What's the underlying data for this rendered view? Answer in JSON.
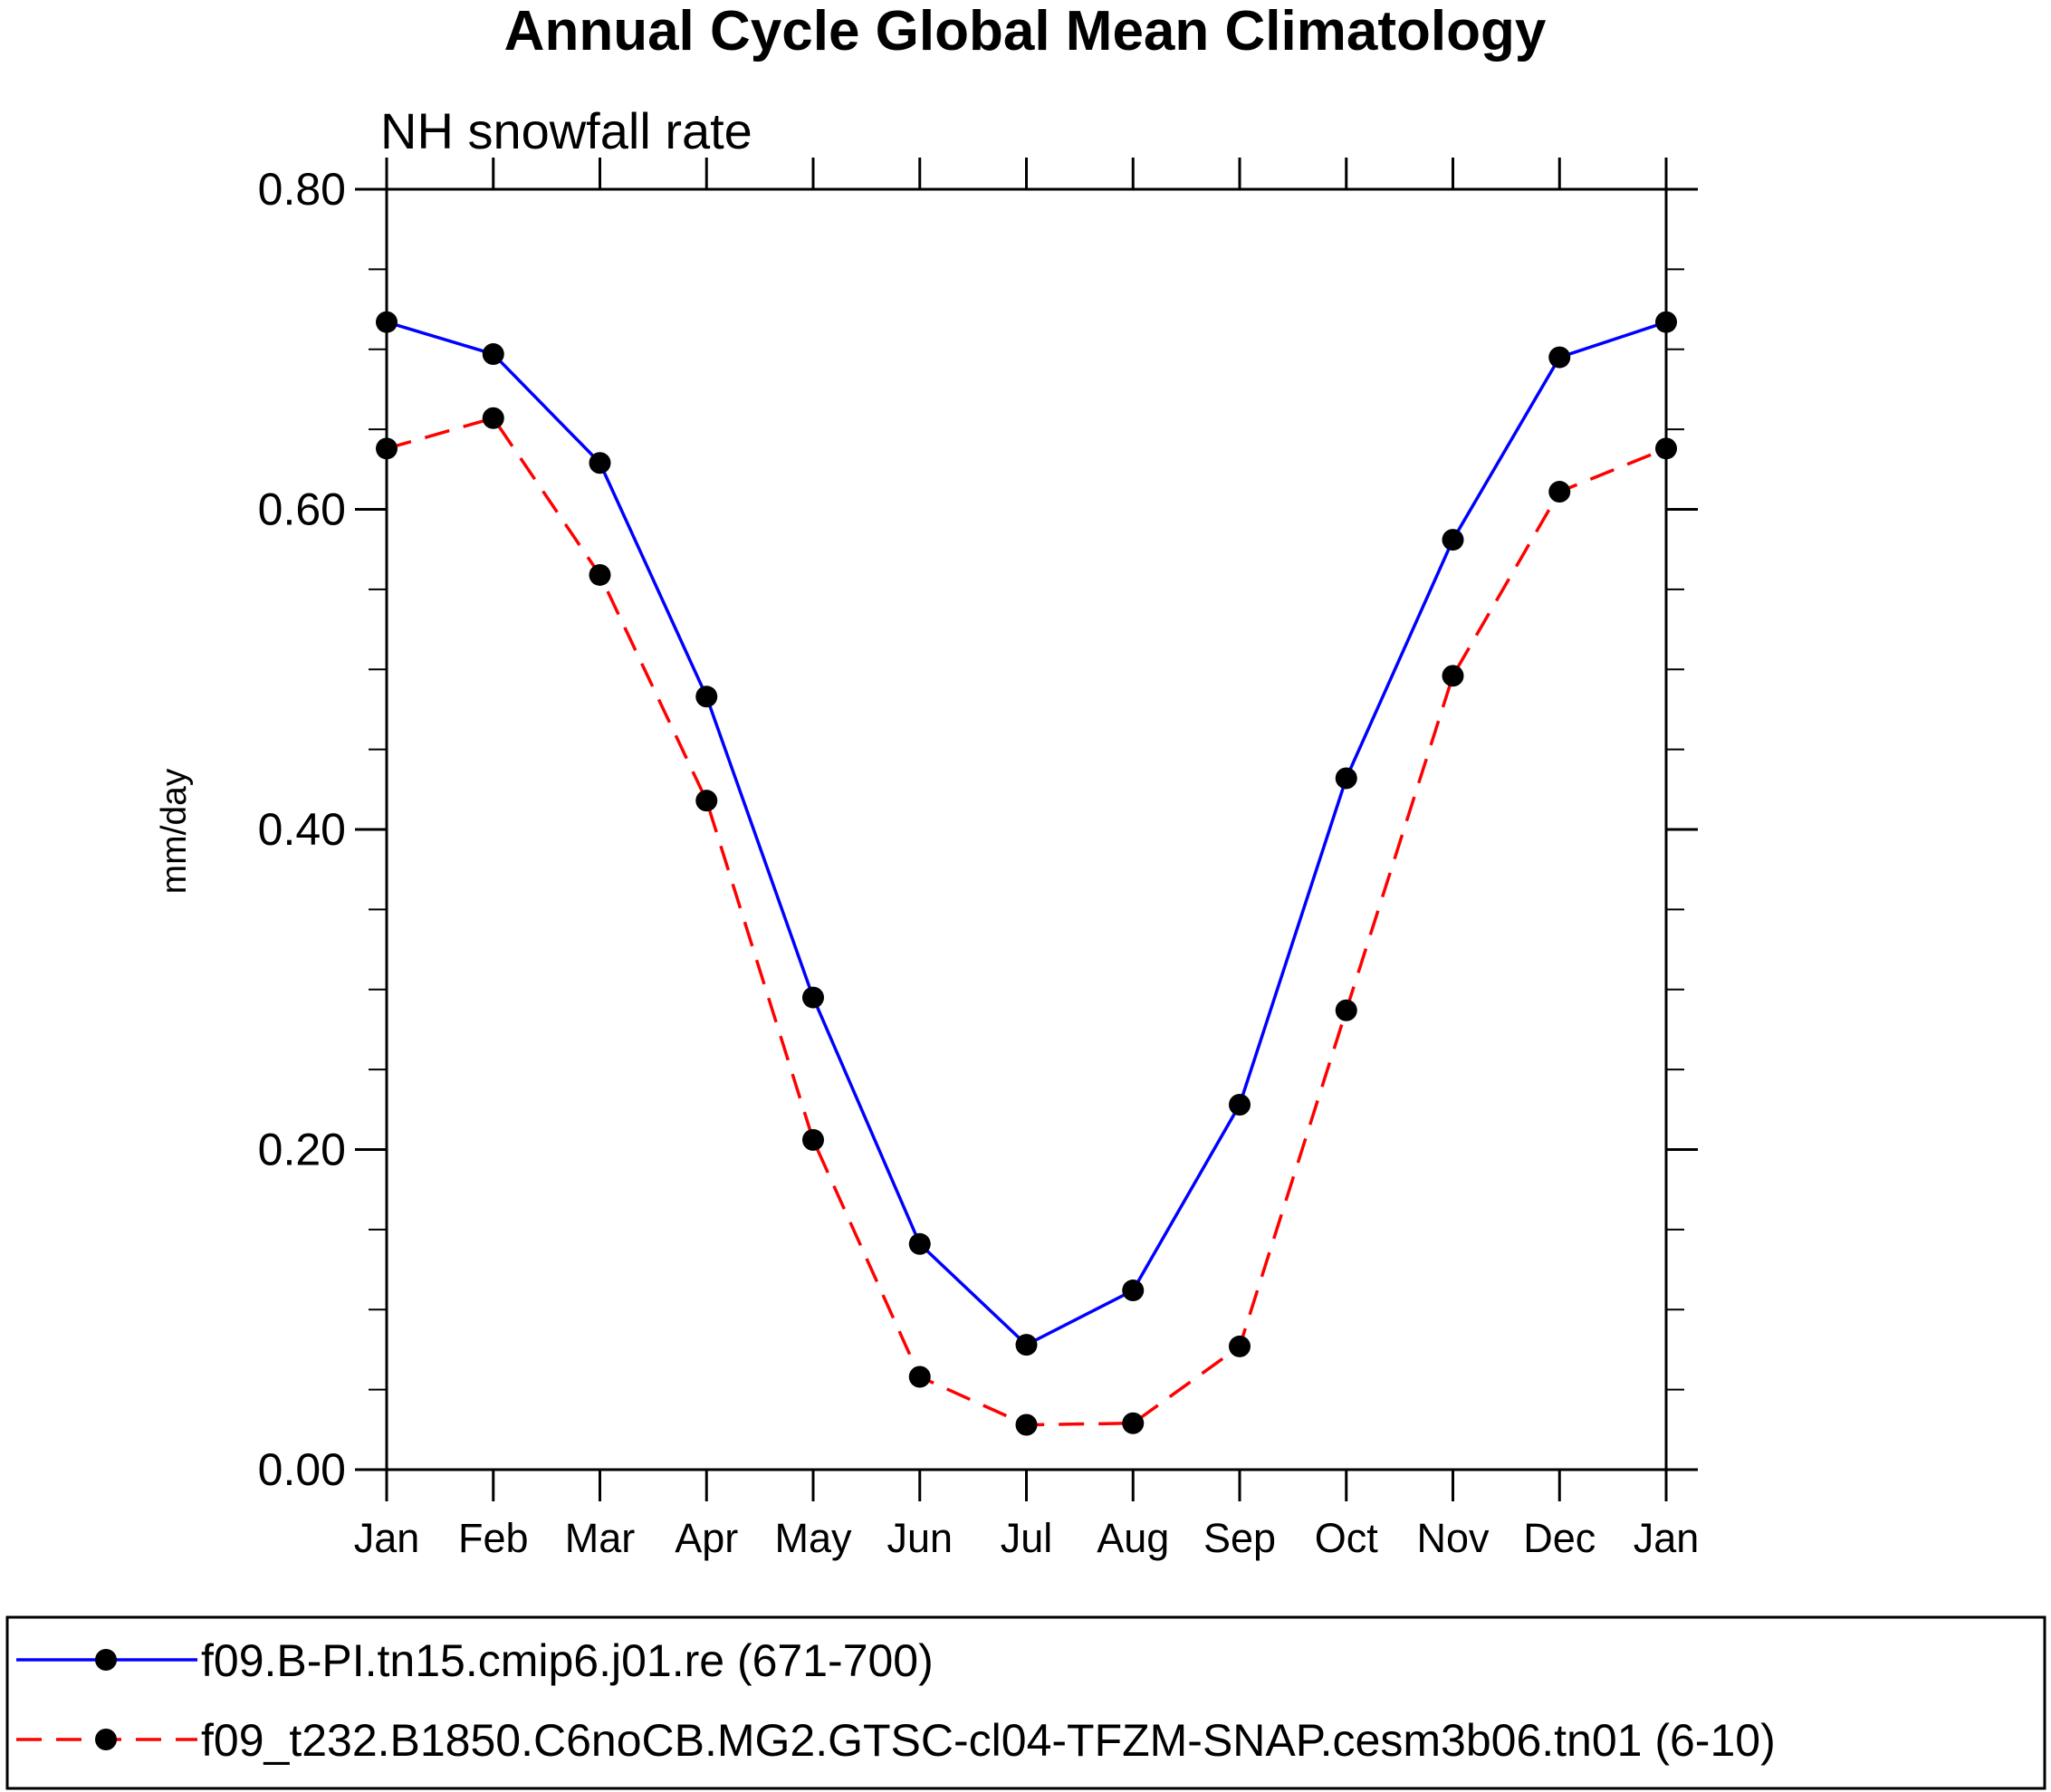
{
  "chart_data": {
    "type": "line",
    "title": "Annual Cycle Global Mean Climatology",
    "subtitle": "NH snowfall rate",
    "xlabel": "",
    "ylabel": "mm/day",
    "ylim": [
      0,
      0.8
    ],
    "yticks": [
      "0.00",
      "0.20",
      "0.40",
      "0.60",
      "0.80"
    ],
    "ytick_values": [
      0,
      0.2,
      0.4,
      0.6,
      0.8
    ],
    "categories": [
      "Jan",
      "Feb",
      "Mar",
      "Apr",
      "May",
      "Jun",
      "Jul",
      "Aug",
      "Sep",
      "Oct",
      "Nov",
      "Dec",
      "Jan"
    ],
    "grid": false,
    "legend_position": "bottom",
    "series": [
      {
        "name": "f09.B-PI.tn15.cmip6.j01.re (671-700)",
        "color": "#0000ff",
        "dash": "solid",
        "values": [
          0.717,
          0.697,
          0.629,
          0.483,
          0.295,
          0.141,
          0.078,
          0.112,
          0.228,
          0.432,
          0.581,
          0.695,
          0.717
        ]
      },
      {
        "name": "f09_t232.B1850.C6noCB.MG2.GTSC-cl04-TFZM-SNAP.cesm3b06.tn01 (6-10)",
        "color": "#ff0000",
        "dash": "dashed",
        "values": [
          0.638,
          0.657,
          0.559,
          0.418,
          0.206,
          0.058,
          0.028,
          0.029,
          0.077,
          0.287,
          0.496,
          0.611,
          0.638
        ]
      }
    ]
  }
}
